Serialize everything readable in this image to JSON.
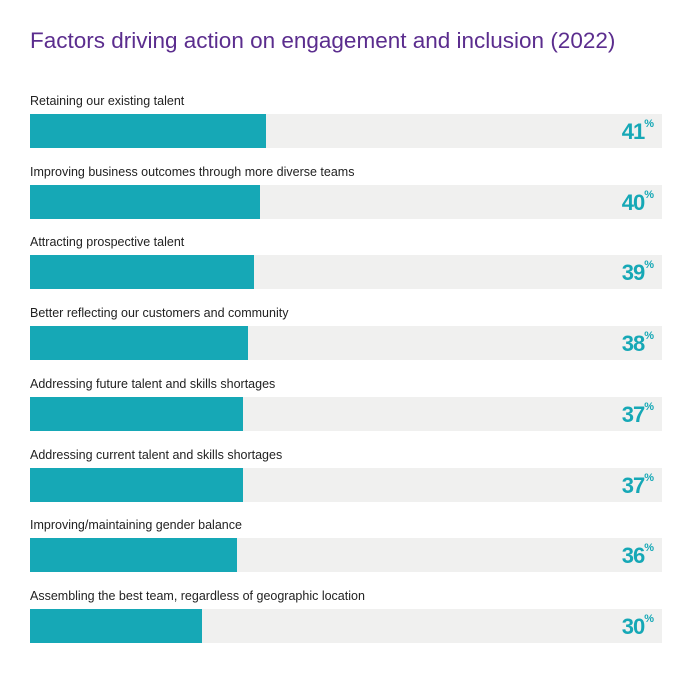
{
  "chart_data": {
    "type": "bar",
    "orientation": "horizontal",
    "title": "Factors driving action on engagement and inclusion (2022)",
    "categories": [
      "Retaining our existing talent",
      "Improving business outcomes through more diverse teams",
      "Attracting prospective talent",
      "Better reflecting our customers and community",
      "Addressing future talent and skills shortages",
      "Addressing current talent and skills shortages",
      "Improving/maintaining gender balance",
      "Assembling the best team, regardless of geographic location"
    ],
    "values": [
      41,
      40,
      39,
      38,
      37,
      37,
      36,
      30
    ],
    "unit": "%",
    "xlim": [
      0,
      110
    ],
    "grid": false,
    "colors": {
      "bar": "#16a8b6",
      "track": "#f0f0ef",
      "title": "#5b2d8e",
      "value": "#16a8b6"
    }
  }
}
